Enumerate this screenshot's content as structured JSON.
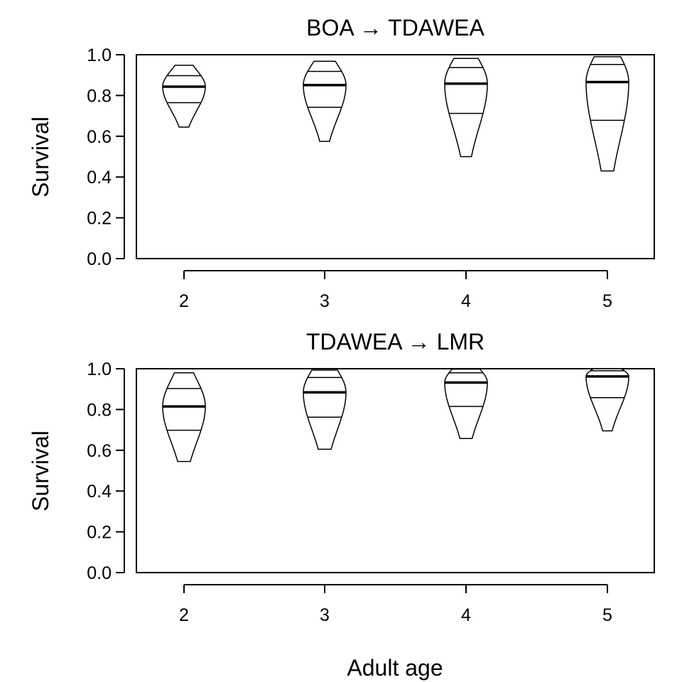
{
  "figure": {
    "xlabel": "Adult age"
  },
  "chart_data": [
    {
      "type": "violin",
      "title": "BOA → TDAWEA",
      "ylabel": "Survival",
      "xlabel": "",
      "ylim": [
        0,
        1
      ],
      "yticks": [
        "0.0",
        "0.2",
        "0.4",
        "0.6",
        "0.8",
        "1.0"
      ],
      "categories": [
        "2",
        "3",
        "4",
        "5"
      ],
      "grid": false,
      "series": [
        {
          "category": "2",
          "min": 0.645,
          "q_low": 0.765,
          "median": 0.843,
          "q_high": 0.897,
          "max": 0.948
        },
        {
          "category": "3",
          "min": 0.575,
          "q_low": 0.742,
          "median": 0.851,
          "q_high": 0.918,
          "max": 0.968
        },
        {
          "category": "4",
          "min": 0.5,
          "q_low": 0.712,
          "median": 0.858,
          "q_high": 0.937,
          "max": 0.982
        },
        {
          "category": "5",
          "min": 0.43,
          "q_low": 0.678,
          "median": 0.866,
          "q_high": 0.952,
          "max": 0.99
        }
      ]
    },
    {
      "type": "violin",
      "title": "TDAWEA → LMR",
      "ylabel": "Survival",
      "xlabel": "",
      "ylim": [
        0,
        1
      ],
      "yticks": [
        "0.0",
        "0.2",
        "0.4",
        "0.6",
        "0.8",
        "1.0"
      ],
      "categories": [
        "2",
        "3",
        "4",
        "5"
      ],
      "grid": false,
      "series": [
        {
          "category": "2",
          "min": 0.545,
          "q_low": 0.698,
          "median": 0.815,
          "q_high": 0.903,
          "max": 0.98
        },
        {
          "category": "3",
          "min": 0.605,
          "q_low": 0.762,
          "median": 0.884,
          "q_high": 0.957,
          "max": 0.993
        },
        {
          "category": "4",
          "min": 0.658,
          "q_low": 0.815,
          "median": 0.932,
          "q_high": 0.98,
          "max": 0.998
        },
        {
          "category": "5",
          "min": 0.695,
          "q_low": 0.858,
          "median": 0.962,
          "q_high": 0.99,
          "max": 1.0
        }
      ]
    }
  ]
}
